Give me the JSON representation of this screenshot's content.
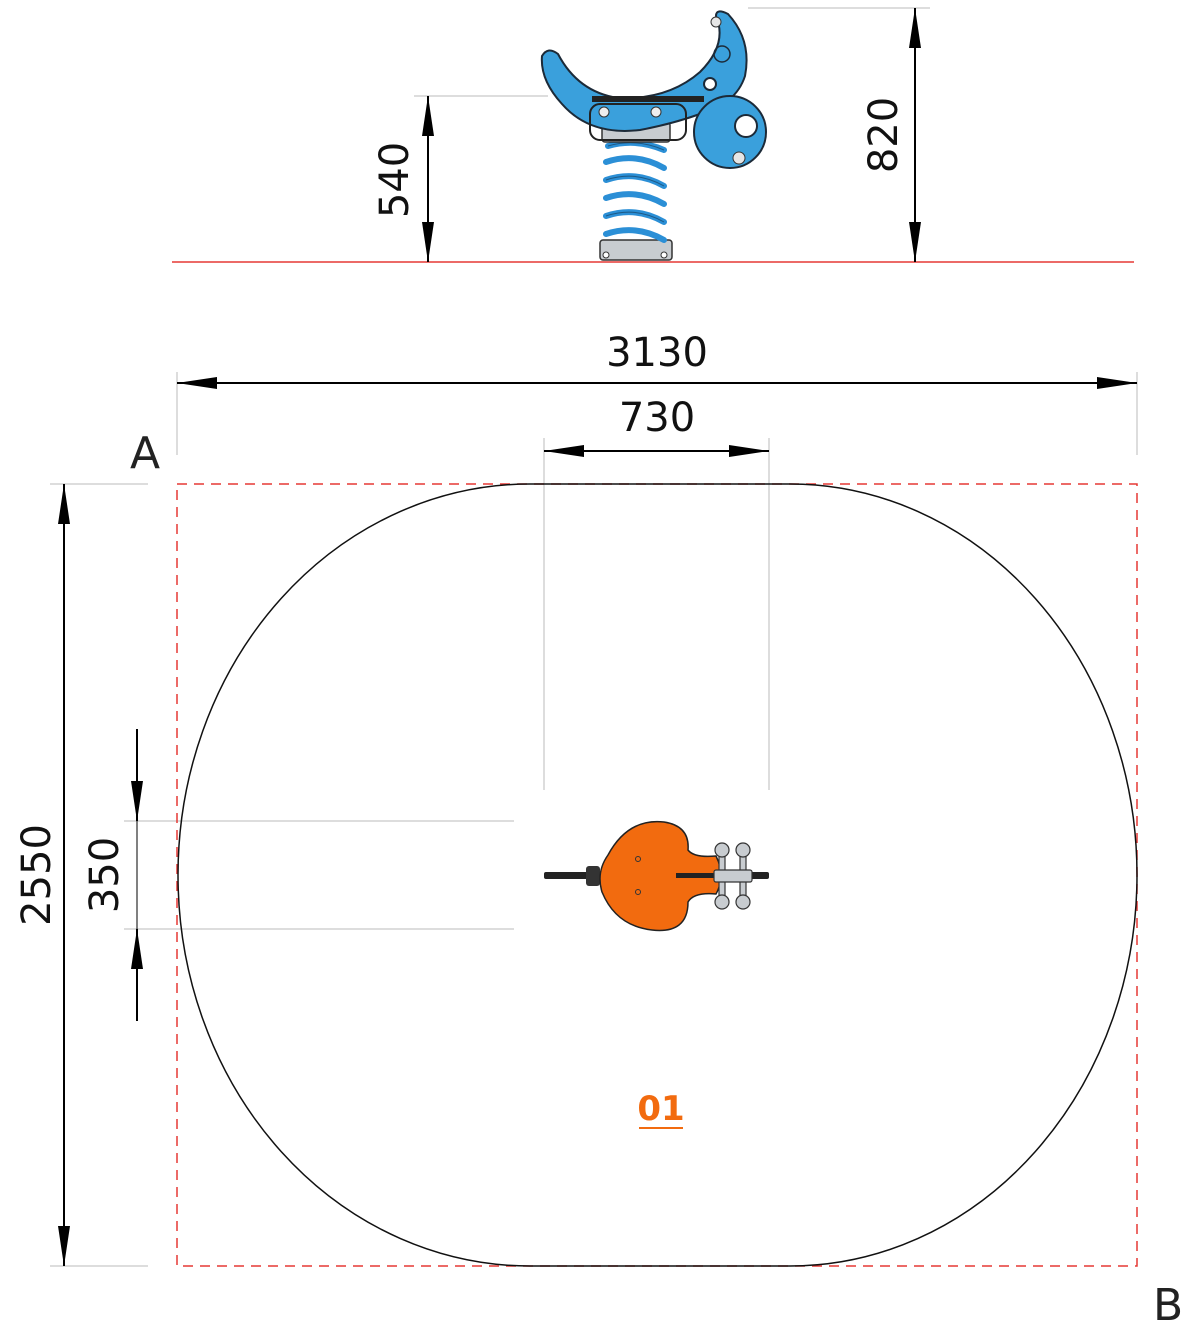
{
  "side_view": {
    "dimensions": {
      "seat_height": "540",
      "total_height": "820"
    }
  },
  "plan_view": {
    "dimensions": {
      "overall_width": "3130",
      "equipment_width": "730",
      "overall_length": "2550",
      "equipment_depth": "350"
    },
    "corners": {
      "top_left": "A",
      "bottom_right": "B"
    },
    "item": {
      "label": "01"
    }
  },
  "colors": {
    "ground_line": "#e53935",
    "boundary_dash": "#e53935",
    "safety_zone": "#111111",
    "seat_blue": "#3aa0dc",
    "spring_blue": "#2b8fd6",
    "seat_orange": "#f26b0f",
    "item_label": "#f26b0f",
    "metal": "#c8ccd0"
  },
  "icons": {
    "side_view_equipment": "spring-rider-elevation-icon",
    "plan_view_equipment": "spring-rider-plan-icon"
  }
}
